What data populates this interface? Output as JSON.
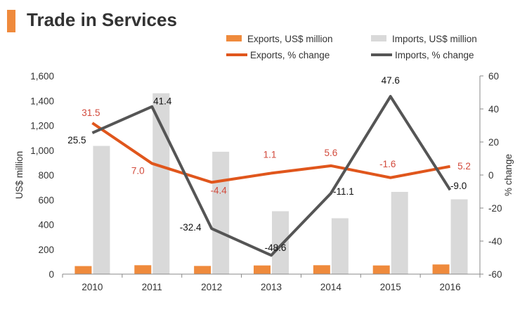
{
  "page": {
    "title": "Trade in Services"
  },
  "colors": {
    "exports_bar": "#ef8a3c",
    "imports_bar": "#d9d9d9",
    "exports_line": "#e0561c",
    "imports_line": "#555555",
    "exports_label": "#d24a3c",
    "axis": "#888888",
    "text": "#333333"
  },
  "chart_data": {
    "type": "bar",
    "title": "Trade in Services",
    "categories": [
      "2010",
      "2011",
      "2012",
      "2013",
      "2014",
      "2015",
      "2016"
    ],
    "ylabel": "US$ million",
    "ylabel_right": "% change",
    "ylim": [
      0,
      1600
    ],
    "y_ticks": [
      0,
      200,
      400,
      600,
      800,
      1000,
      1200,
      1400,
      1600
    ],
    "y_tick_labels": [
      "0",
      "200",
      "400",
      "600",
      "800",
      "1,000",
      "1,200",
      "1,400",
      "1,600"
    ],
    "ylim_right": [
      -60,
      60
    ],
    "y_ticks_right": [
      -60,
      -40,
      -20,
      0,
      20,
      40,
      60
    ],
    "y_tick_labels_right": [
      "-60",
      "-40",
      "-20",
      "0",
      "20",
      "40",
      "60"
    ],
    "legend": [
      {
        "label": "Exports, US$ million",
        "kind": "bar",
        "series": "exports"
      },
      {
        "label": "Imports, US$ million",
        "kind": "bar",
        "series": "imports"
      },
      {
        "label": "Exports, % change",
        "kind": "line",
        "series": "exports_pct"
      },
      {
        "label": "Imports, % change",
        "kind": "line",
        "series": "imports_pct"
      }
    ],
    "series": [
      {
        "name": "Exports, US$ million",
        "key": "exports",
        "type": "bar",
        "axis": "left",
        "values": [
          65,
          72,
          66,
          70,
          72,
          70,
          78
        ]
      },
      {
        "name": "Imports, US$ million",
        "key": "imports",
        "type": "bar",
        "axis": "left",
        "values": [
          1035,
          1460,
          988,
          508,
          451,
          664,
          604
        ]
      },
      {
        "name": "Exports, % change",
        "key": "exports_pct",
        "type": "line",
        "axis": "right",
        "values": [
          31.5,
          7.0,
          -4.4,
          1.1,
          5.6,
          -1.6,
          5.2
        ],
        "labels": [
          "31.5",
          "7.0",
          "-4.4",
          "1.1",
          "5.6",
          "-1.6",
          "5.2"
        ]
      },
      {
        "name": "Imports, % change",
        "key": "imports_pct",
        "type": "line",
        "axis": "right",
        "values": [
          25.5,
          41.4,
          -32.4,
          -48.6,
          -11.1,
          47.6,
          -9.0
        ],
        "labels": [
          "25.5",
          "41.4",
          "-32.4",
          "-48.6",
          "-11.1",
          "47.6",
          "-9.0"
        ]
      }
    ]
  }
}
